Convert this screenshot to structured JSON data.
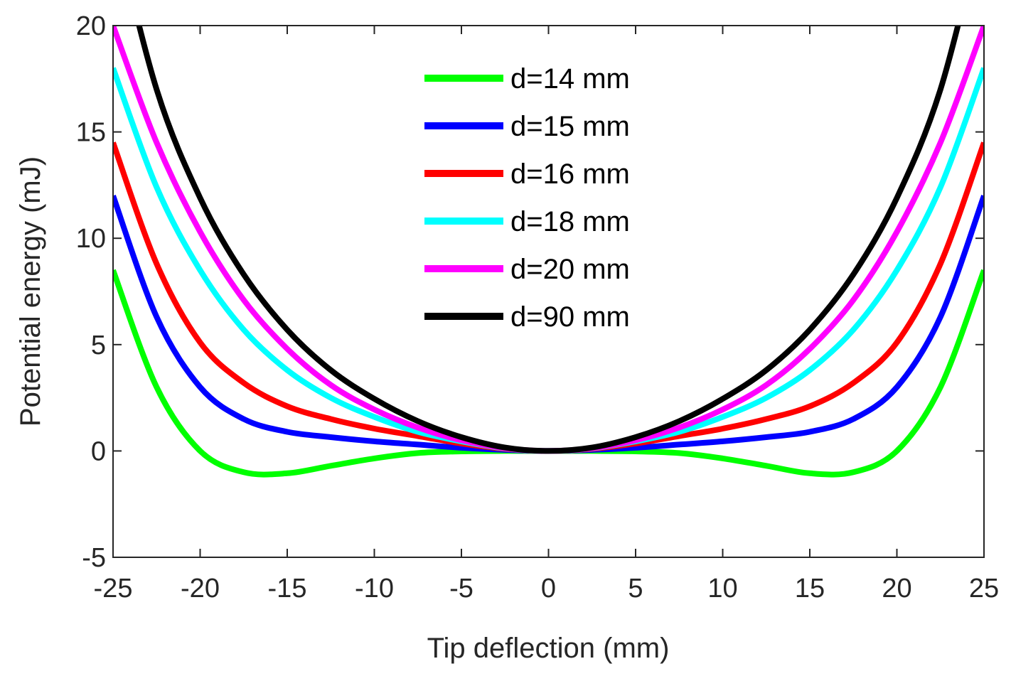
{
  "chart_data": {
    "type": "line",
    "xlabel": "Tip deflection (mm)",
    "ylabel": "Potential energy (mJ)",
    "xlim": [
      -25,
      25
    ],
    "ylim": [
      -5,
      20
    ],
    "xticks": [
      -25,
      -20,
      -15,
      -10,
      -5,
      0,
      5,
      10,
      15,
      20,
      25
    ],
    "yticks": [
      -5,
      0,
      5,
      10,
      15,
      20
    ],
    "xtick_labels": [
      "-25",
      "-20",
      "-15",
      "-10",
      "-5",
      "0",
      "5",
      "10",
      "15",
      "20",
      "25"
    ],
    "ytick_labels": [
      "-5",
      "0",
      "5",
      "10",
      "15",
      "20"
    ],
    "grid": false,
    "legend_position": "top-center",
    "x": [
      -25,
      -22.5,
      -20,
      -17.5,
      -15,
      -12.5,
      -10,
      -7.5,
      -5,
      -2.5,
      0,
      2.5,
      5,
      7.5,
      10,
      12.5,
      15,
      17.5,
      20,
      22.5,
      25
    ],
    "series": [
      {
        "name": "d=14 mm",
        "color": "#00ff00",
        "values": [
          8.5,
          3.0,
          0.0,
          -1.0,
          -1.05,
          -0.7,
          -0.35,
          -0.1,
          -0.02,
          0.0,
          0.0,
          0.0,
          -0.02,
          -0.1,
          -0.35,
          -0.7,
          -1.05,
          -1.0,
          0.0,
          3.0,
          8.5
        ]
      },
      {
        "name": "d=15 mm",
        "color": "#0000ff",
        "values": [
          12.0,
          6.3,
          3.0,
          1.5,
          0.9,
          0.65,
          0.45,
          0.3,
          0.15,
          0.05,
          0.0,
          0.05,
          0.15,
          0.3,
          0.45,
          0.65,
          0.9,
          1.5,
          3.0,
          6.3,
          12.0
        ]
      },
      {
        "name": "d=16 mm",
        "color": "#ff0000",
        "values": [
          14.5,
          8.8,
          5.1,
          3.2,
          2.1,
          1.5,
          1.05,
          0.7,
          0.35,
          0.1,
          0.0,
          0.1,
          0.35,
          0.7,
          1.05,
          1.5,
          2.1,
          3.2,
          5.1,
          8.8,
          14.5
        ]
      },
      {
        "name": "d=18 mm",
        "color": "#00ffff",
        "values": [
          18.0,
          12.4,
          8.5,
          5.7,
          3.8,
          2.5,
          1.6,
          0.9,
          0.45,
          0.12,
          0.0,
          0.12,
          0.45,
          0.9,
          1.6,
          2.5,
          3.8,
          5.7,
          8.5,
          12.4,
          18.0
        ]
      },
      {
        "name": "d=20 mm",
        "color": "#ff00ff",
        "values": [
          20.0,
          14.5,
          10.3,
          7.1,
          4.8,
          3.1,
          1.95,
          1.1,
          0.5,
          0.13,
          0.0,
          0.13,
          0.5,
          1.1,
          1.95,
          3.1,
          4.8,
          7.1,
          10.3,
          14.5,
          20.0
        ]
      },
      {
        "name": "d=90 mm",
        "color": "#000000",
        "values": [
          25.0,
          17.0,
          11.9,
          8.3,
          5.7,
          3.8,
          2.45,
          1.4,
          0.65,
          0.16,
          0.0,
          0.16,
          0.65,
          1.4,
          2.45,
          3.8,
          5.7,
          8.3,
          11.9,
          17.0,
          25.0
        ]
      }
    ]
  }
}
